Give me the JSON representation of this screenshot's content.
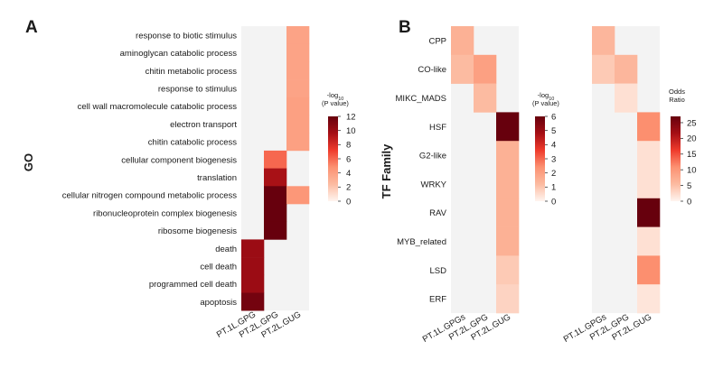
{
  "colors": {
    "na": "#f3f3f3",
    "scale": [
      "#fff5f0",
      "#fcbba1",
      "#fc9272",
      "#ef3b2c",
      "#a50f15",
      "#67000d"
    ]
  },
  "chart_data": [
    {
      "type": "heatmap",
      "panel_label": "A",
      "ylabel": "GO",
      "columns": [
        "PT.1L.GPG",
        "PT.2L.GPG",
        "PT.2L.GUG"
      ],
      "rows": [
        "response to biotic stimulus",
        "aminoglycan catabolic process",
        "chitin metabolic process",
        "response to stimulus",
        "cell wall macromolecule catabolic process",
        "electron transport",
        "chitin catabolic process",
        "cellular component biogenesis",
        "translation",
        "cellular nitrogen compound metabolic process",
        "ribonucleoprotein complex biogenesis",
        "ribosome biogenesis",
        "death",
        "cell death",
        "programmed cell death",
        "apoptosis"
      ],
      "values": [
        [
          null,
          null,
          3.8
        ],
        [
          null,
          null,
          3.8
        ],
        [
          null,
          null,
          3.8
        ],
        [
          null,
          null,
          3.8
        ],
        [
          null,
          null,
          4.0
        ],
        [
          null,
          null,
          4.0
        ],
        [
          null,
          null,
          4.0
        ],
        [
          null,
          6.0,
          null
        ],
        [
          null,
          9.5,
          null
        ],
        [
          null,
          12.0,
          4.5
        ],
        [
          null,
          12.0,
          null
        ],
        [
          null,
          12.0,
          null
        ],
        [
          10.0,
          null,
          null
        ],
        [
          10.0,
          null,
          null
        ],
        [
          10.0,
          null,
          null
        ],
        [
          11.5,
          null,
          null
        ]
      ],
      "colorbar": {
        "title_main": "-log",
        "title_sub": "10",
        "title_rest": "(P value)",
        "range": [
          0,
          12
        ],
        "ticks": [
          "0",
          "2",
          "4",
          "6",
          "8",
          "10",
          "12"
        ]
      }
    },
    {
      "type": "heatmap",
      "panel_label": "B",
      "ylabel": "TF Family",
      "columns": [
        "PT.1L.GPGs",
        "PT.2L.GPG",
        "PT.2L.GUG"
      ],
      "rows": [
        "CPP",
        "CO-like",
        "MIKC_MADS",
        "HSF",
        "G2-like",
        "WRKY",
        "RAV",
        "MYB_related",
        "LSD",
        "ERF"
      ],
      "values": [
        [
          1.5,
          null,
          null
        ],
        [
          1.2,
          2.0,
          null
        ],
        [
          null,
          1.2,
          null
        ],
        [
          null,
          null,
          6.0
        ],
        [
          null,
          null,
          1.5
        ],
        [
          null,
          null,
          1.5
        ],
        [
          null,
          null,
          1.5
        ],
        [
          null,
          null,
          1.5
        ],
        [
          null,
          null,
          0.9
        ],
        [
          null,
          null,
          0.7
        ]
      ],
      "colorbar": {
        "title_main": "-log",
        "title_sub": "10",
        "title_rest": "(P value)",
        "range": [
          0,
          6
        ],
        "ticks": [
          "0",
          "1",
          "2",
          "3",
          "4",
          "5",
          "6"
        ]
      }
    },
    {
      "type": "heatmap",
      "panel_label": "",
      "ylabel": "",
      "columns": [
        "PT.1L.GPGs",
        "PT.2L.GPG",
        "PT.2L.GUG"
      ],
      "rows": [
        "CPP",
        "CO-like",
        "MIKC_MADS",
        "HSF",
        "G2-like",
        "WRKY",
        "RAV",
        "MYB_related",
        "LSD",
        "ERF"
      ],
      "values": [
        [
          6.0,
          null,
          null
        ],
        [
          4.0,
          6.0,
          null
        ],
        [
          null,
          2.0,
          null
        ],
        [
          null,
          null,
          11.0
        ],
        [
          null,
          null,
          2.0
        ],
        [
          null,
          null,
          2.0
        ],
        [
          null,
          null,
          27.0
        ],
        [
          null,
          null,
          2.0
        ],
        [
          null,
          null,
          11.0
        ],
        [
          null,
          null,
          1.5
        ]
      ],
      "colorbar": {
        "title_main": "Odds",
        "title_rest": "Ratio",
        "range": [
          0,
          27
        ],
        "ticks": [
          "0",
          "5",
          "10",
          "15",
          "20",
          "25"
        ],
        "tick_values": [
          0,
          5,
          10,
          15,
          20,
          25
        ]
      }
    }
  ]
}
